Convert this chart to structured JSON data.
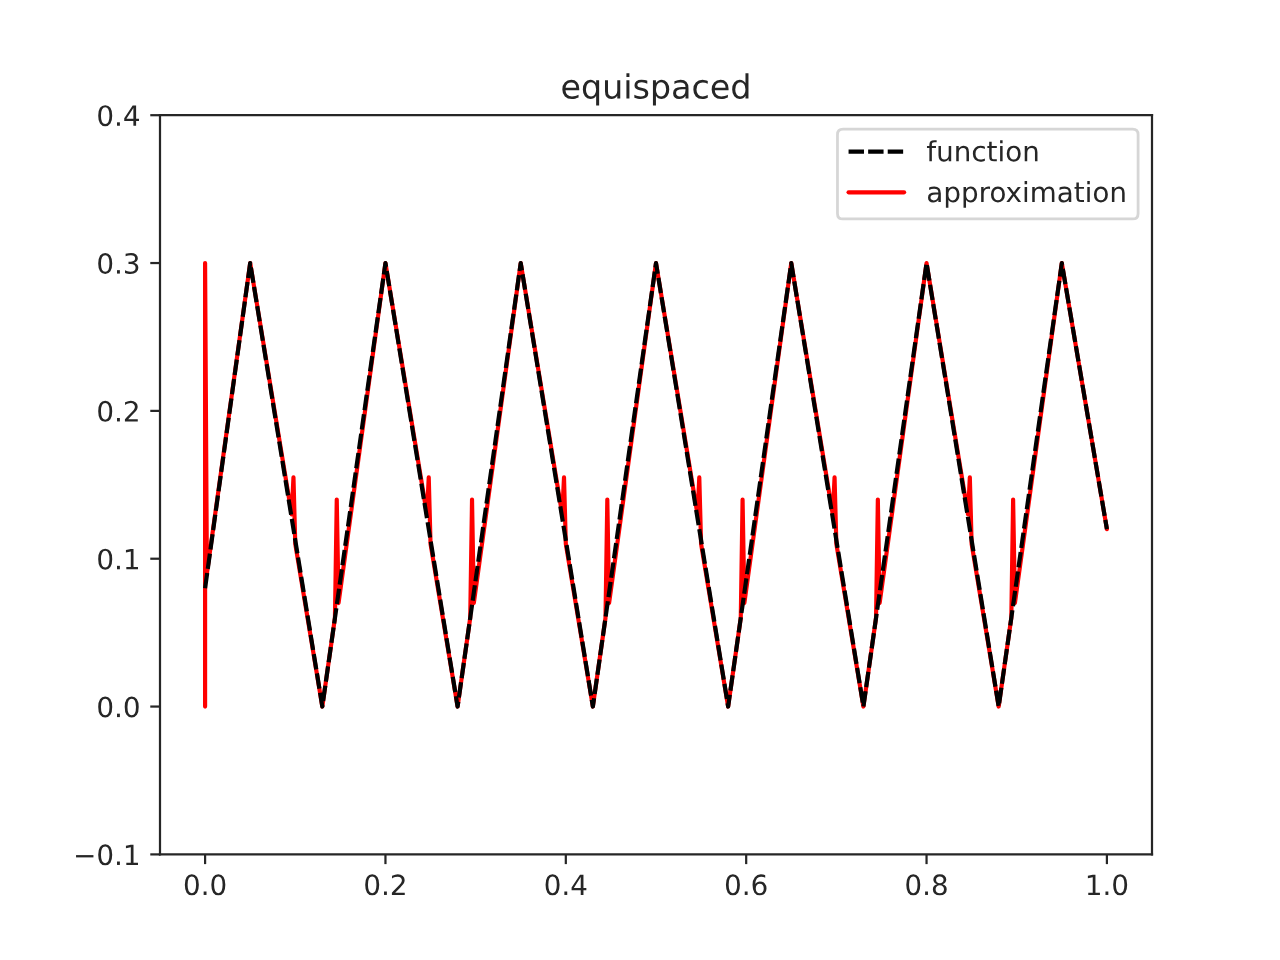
{
  "chart_data": {
    "type": "line",
    "title": "equispaced",
    "series": [
      {
        "name": "function",
        "color": "#000000",
        "line_style": "dashed",
        "x": [
          0,
          0.05,
          0.13,
          0.2,
          0.28,
          0.35,
          0.43,
          0.5,
          0.58,
          0.65,
          0.73,
          0.8,
          0.88,
          0.95,
          1.0
        ],
        "values": [
          0.08,
          0.3,
          0,
          0.3,
          0,
          0.3,
          0,
          0.3,
          0,
          0.3,
          0,
          0.3,
          0,
          0.3,
          0.12
        ]
      },
      {
        "name": "approximation",
        "color": "#ff0000",
        "line_style": "solid",
        "x": [
          0,
          0,
          0.002,
          0.05,
          0.096,
          0.098,
          0.1,
          0.13,
          0.144,
          0.146,
          0.148,
          0.2,
          0.246,
          0.248,
          0.25,
          0.28,
          0.294,
          0.296,
          0.298,
          0.35,
          0.396,
          0.398,
          0.4,
          0.43,
          0.444,
          0.446,
          0.448,
          0.5,
          0.546,
          0.548,
          0.55,
          0.58,
          0.594,
          0.596,
          0.598,
          0.65,
          0.696,
          0.698,
          0.7,
          0.73,
          0.744,
          0.746,
          0.748,
          0.8,
          0.846,
          0.848,
          0.85,
          0.88,
          0.894,
          0.896,
          0.898,
          0.95,
          1.0
        ],
        "values": [
          0,
          0.3,
          0.09,
          0.3,
          0.13,
          0.155,
          0.11,
          0,
          0.06,
          0.14,
          0.07,
          0.3,
          0.13,
          0.155,
          0.11,
          0,
          0.06,
          0.14,
          0.07,
          0.3,
          0.13,
          0.155,
          0.11,
          0,
          0.06,
          0.14,
          0.07,
          0.3,
          0.13,
          0.155,
          0.11,
          0,
          0.06,
          0.14,
          0.07,
          0.3,
          0.13,
          0.155,
          0.11,
          0,
          0.06,
          0.14,
          0.07,
          0.3,
          0.13,
          0.155,
          0.11,
          0,
          0.06,
          0.14,
          0.07,
          0.3,
          0.12
        ]
      }
    ],
    "xlim": [
      -0.05,
      1.05
    ],
    "xticks": [
      {
        "value": 0,
        "label": "0.0"
      },
      {
        "value": 0.2,
        "label": "0.2"
      },
      {
        "value": 0.4,
        "label": "0.4"
      },
      {
        "value": 0.6,
        "label": "0.6"
      },
      {
        "value": 0.8,
        "label": "0.8"
      },
      {
        "value": 1.0,
        "label": "1.0"
      }
    ],
    "ylim": [
      -0.1,
      0.4
    ],
    "yticks": [
      {
        "value": -0.1,
        "label": "−0.1"
      },
      {
        "value": 0,
        "label": "0.0"
      },
      {
        "value": 0.1,
        "label": "0.1"
      },
      {
        "value": 0.2,
        "label": "0.2"
      },
      {
        "value": 0.3,
        "label": "0.3"
      },
      {
        "value": 0.4,
        "label": "0.4"
      }
    ],
    "grid": false,
    "legend": "top right",
    "marker": "none"
  }
}
